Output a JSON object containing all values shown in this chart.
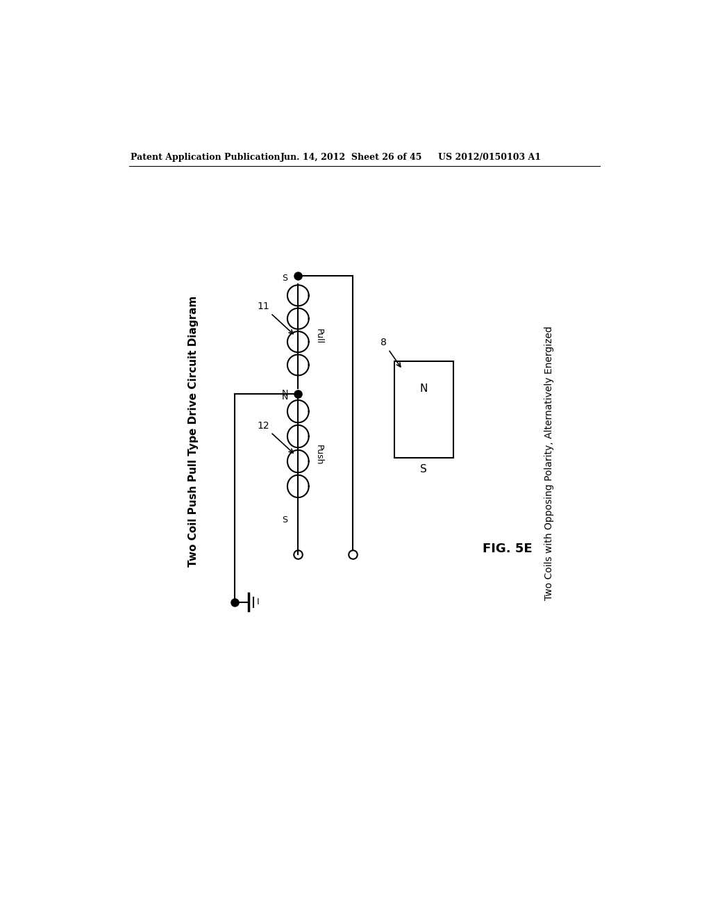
{
  "bg_color": "#ffffff",
  "header_left": "Patent Application Publication",
  "header_center": "Jun. 14, 2012  Sheet 26 of 45",
  "header_right": "US 2012/0150103 A1",
  "left_title": "Two Coil Push Pull Type Drive Circuit Diagram",
  "right_title": "Two Coils with Opposing Polarity, Alternatively Energized",
  "fig_label": "FIG. 5E",
  "coil_label_11": "11",
  "coil_label_12": "12",
  "coil_label_pull": "Pull",
  "coil_label_push": "Push",
  "magnet_label": "8",
  "magnet_N": "N",
  "magnet_S": "S"
}
